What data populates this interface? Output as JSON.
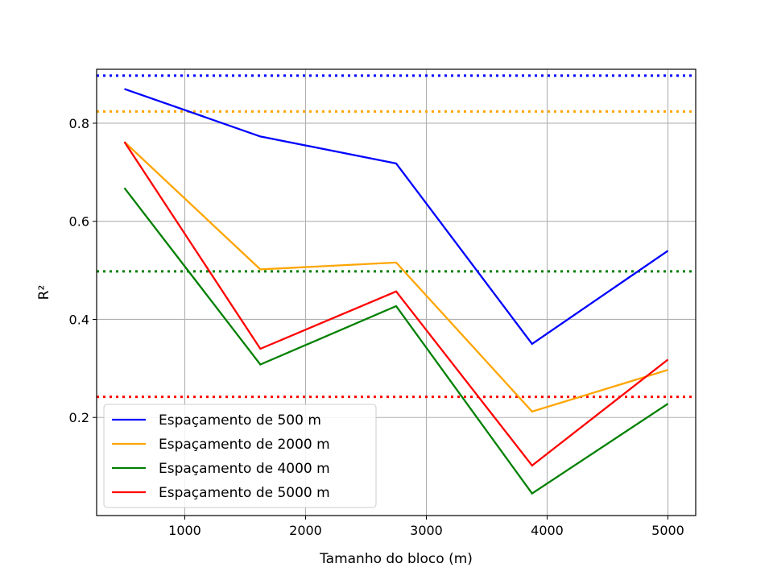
{
  "chart_data": {
    "type": "line",
    "title": "",
    "xlabel": "Tamanho do bloco (m)",
    "ylabel": "R²",
    "xlim": [
      270,
      5230
    ],
    "ylim": [
      0.0,
      0.91
    ],
    "x_ticks": [
      1000,
      2000,
      3000,
      4000,
      5000
    ],
    "y_ticks": [
      0.2,
      0.4,
      0.6,
      0.8
    ],
    "x_tick_labels": [
      "1000",
      "2000",
      "3000",
      "4000",
      "5000"
    ],
    "y_tick_labels": [
      "0.2",
      "0.4",
      "0.6",
      "0.8"
    ],
    "grid": true,
    "legend_position": "lower-left",
    "x": [
      500,
      1625,
      2750,
      3875,
      5000
    ],
    "series": [
      {
        "name": "Espaçamento de 500 m",
        "color": "#0000ff",
        "values": [
          0.87,
          0.773,
          0.718,
          0.35,
          0.54
        ],
        "reference": 0.897
      },
      {
        "name": "Espaçamento de 2000 m",
        "color": "#ffa500",
        "values": [
          0.762,
          0.502,
          0.516,
          0.212,
          0.297
        ],
        "reference": 0.824
      },
      {
        "name": "Espaçamento de 4000 m",
        "color": "#008000",
        "values": [
          0.668,
          0.308,
          0.427,
          0.045,
          0.228
        ],
        "reference": 0.498
      },
      {
        "name": "Espaçamento de 5000 m",
        "color": "#ff0000",
        "values": [
          0.762,
          0.34,
          0.457,
          0.102,
          0.318
        ],
        "reference": 0.242
      }
    ]
  }
}
